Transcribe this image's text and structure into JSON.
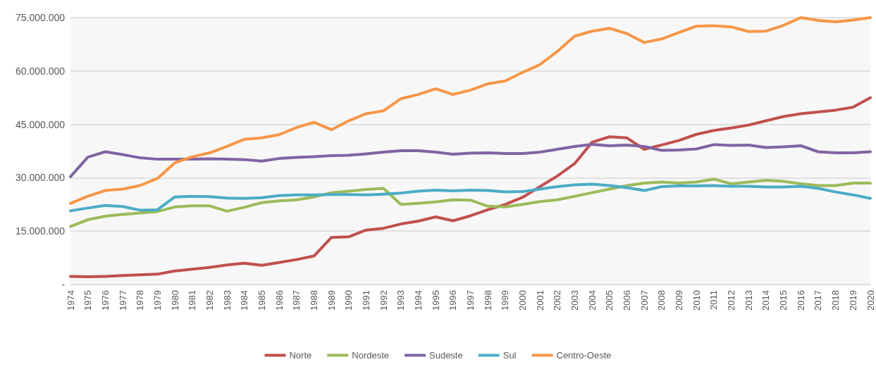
{
  "chart_data": {
    "type": "line",
    "categories": [
      "1974",
      "1975",
      "1976",
      "1977",
      "1978",
      "1979",
      "1980",
      "1981",
      "1982",
      "1983",
      "1984",
      "1985",
      "1986",
      "1987",
      "1988",
      "1989",
      "1990",
      "1991",
      "1992",
      "1993",
      "1994",
      "1995",
      "1996",
      "1997",
      "1998",
      "1999",
      "2000",
      "2001",
      "2002",
      "2003",
      "2004",
      "2005",
      "2006",
      "2007",
      "2008",
      "2009",
      "2010",
      "2011",
      "2012",
      "2013",
      "2014",
      "2015",
      "2016",
      "2017",
      "2018",
      "2019",
      "2020"
    ],
    "series": [
      {
        "name": "Norte",
        "color": "#c0504d",
        "values": [
          2300000,
          2200000,
          2300000,
          2500000,
          2700000,
          2900000,
          3800000,
          4300000,
          4800000,
          5500000,
          6000000,
          5400000,
          6200000,
          7000000,
          8000000,
          13200000,
          13400000,
          15300000,
          15800000,
          17000000,
          17800000,
          19000000,
          17900000,
          19300000,
          21000000,
          22500000,
          24500000,
          27500000,
          30500000,
          34000000,
          40000000,
          41500000,
          41200000,
          38000000,
          39200000,
          40500000,
          42200000,
          43300000,
          44000000,
          44800000,
          46000000,
          47200000,
          48000000,
          48500000,
          49000000,
          49800000,
          52500000
        ]
      },
      {
        "name": "Nordeste",
        "color": "#9bbb59",
        "values": [
          16300000,
          18200000,
          19200000,
          19700000,
          20100000,
          20500000,
          21800000,
          22100000,
          22100000,
          20600000,
          21700000,
          23000000,
          23500000,
          23800000,
          24600000,
          25800000,
          26200000,
          26700000,
          27000000,
          22500000,
          22800000,
          23200000,
          23800000,
          23700000,
          22000000,
          21800000,
          22500000,
          23300000,
          23800000,
          24800000,
          25800000,
          26800000,
          27800000,
          28500000,
          28800000,
          28500000,
          28800000,
          29600000,
          28300000,
          28800000,
          29300000,
          29000000,
          28300000,
          27800000,
          27800000,
          28500000,
          28500000
        ]
      },
      {
        "name": "Sudeste",
        "color": "#8064a2",
        "values": [
          30300000,
          35800000,
          37300000,
          36500000,
          35600000,
          35200000,
          35200000,
          35200000,
          35300000,
          35200000,
          35100000,
          34700000,
          35400000,
          35700000,
          35900000,
          36200000,
          36300000,
          36700000,
          37200000,
          37600000,
          37600000,
          37200000,
          36600000,
          36900000,
          37000000,
          36800000,
          36800000,
          37200000,
          38000000,
          38800000,
          39400000,
          39000000,
          39200000,
          38800000,
          37700000,
          37800000,
          38100000,
          39300000,
          39100000,
          39200000,
          38500000,
          38700000,
          39000000,
          37300000,
          37000000,
          37000000,
          37300000
        ]
      },
      {
        "name": "Sul",
        "color": "#4bacc6",
        "values": [
          20700000,
          21500000,
          22200000,
          21900000,
          20900000,
          21000000,
          24600000,
          24800000,
          24700000,
          24300000,
          24200000,
          24400000,
          25000000,
          25200000,
          25200000,
          25300000,
          25300000,
          25200000,
          25400000,
          25700000,
          26200000,
          26500000,
          26300000,
          26500000,
          26400000,
          26000000,
          26100000,
          26800000,
          27500000,
          28000000,
          28200000,
          27800000,
          27200000,
          26400000,
          27500000,
          27700000,
          27700000,
          27800000,
          27600000,
          27600000,
          27400000,
          27400000,
          27600000,
          27000000,
          26000000,
          25200000,
          24200000
        ]
      },
      {
        "name": "Centro-Oeste",
        "color": "#f79646",
        "values": [
          22800000,
          24800000,
          26400000,
          26800000,
          27800000,
          29800000,
          34200000,
          35900000,
          37000000,
          38800000,
          40800000,
          41200000,
          42100000,
          44100000,
          45600000,
          43500000,
          46000000,
          48000000,
          48800000,
          52200000,
          53400000,
          55000000,
          53400000,
          54600000,
          56400000,
          57200000,
          59600000,
          61800000,
          65500000,
          69800000,
          71200000,
          72000000,
          70500000,
          68000000,
          69000000,
          70800000,
          72600000,
          72700000,
          72400000,
          71100000,
          71200000,
          72800000,
          75000000,
          74200000,
          73800000,
          74300000,
          75000000
        ]
      }
    ],
    "ylim": [
      0,
      75000000
    ],
    "yticks": [
      {
        "value": 0,
        "label": "-"
      },
      {
        "value": 15000000,
        "label": "15.000.000"
      },
      {
        "value": 30000000,
        "label": "30.000.000"
      },
      {
        "value": 45000000,
        "label": "45.000.000"
      },
      {
        "value": 60000000,
        "label": "60.000.000"
      },
      {
        "value": 75000000,
        "label": "75.000.000"
      }
    ],
    "grid": "y",
    "legend": "bottom",
    "marker": "none",
    "line_style": "solid"
  }
}
